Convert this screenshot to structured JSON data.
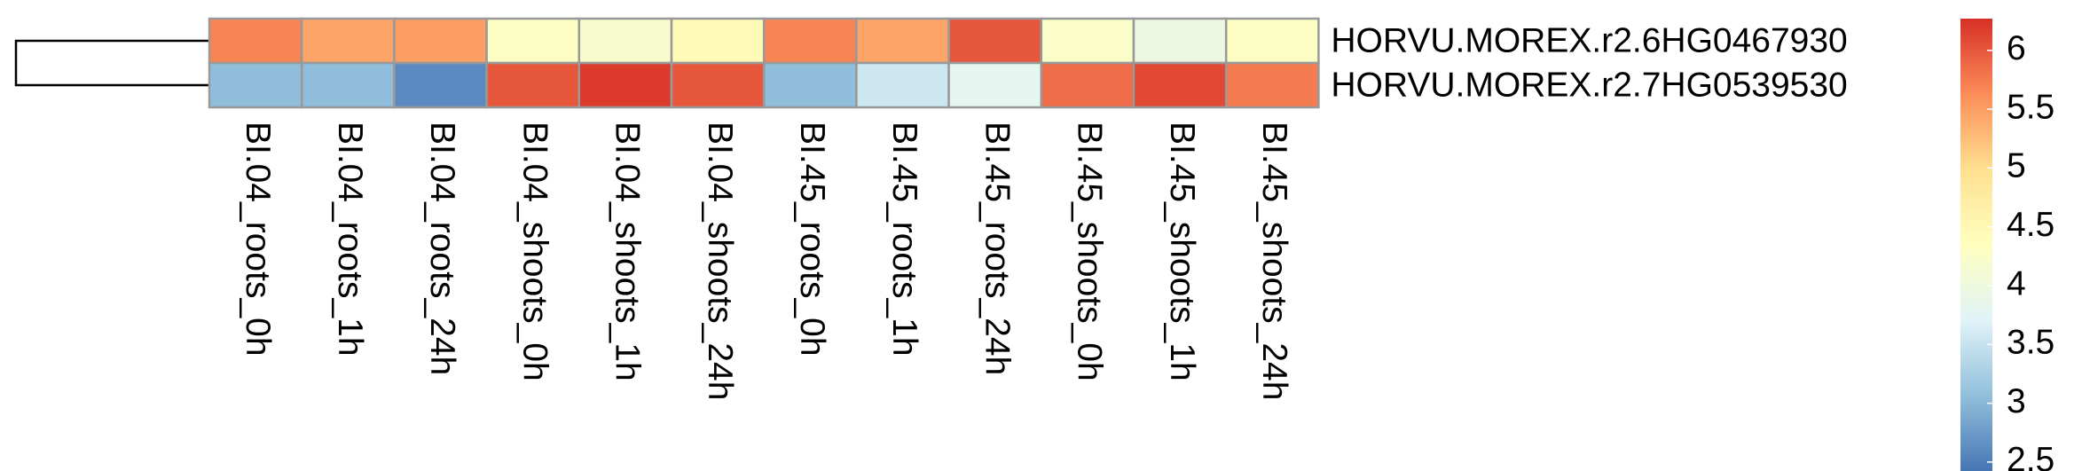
{
  "chart_data": {
    "type": "heatmap",
    "rows": [
      "HORVU.MOREX.r2.6HG0467930",
      "HORVU.MOREX.r2.7HG0539530"
    ],
    "columns": [
      "BI.04_roots_0h",
      "BI.04_roots_1h",
      "BI.04_roots_24h",
      "BI.04_shoots_0h",
      "BI.04_shoots_1h",
      "BI.04_shoots_24h",
      "BI.45_roots_0h",
      "BI.45_roots_1h",
      "BI.45_roots_24h",
      "BI.45_shoots_0h",
      "BI.45_shoots_1h",
      "BI.45_shoots_24h"
    ],
    "values": [
      [
        5.7,
        5.45,
        5.5,
        4.3,
        4.2,
        4.45,
        5.7,
        5.45,
        6.0,
        4.25,
        3.95,
        4.3
      ],
      [
        3.05,
        3.05,
        2.6,
        6.0,
        6.2,
        6.0,
        3.05,
        3.55,
        3.8,
        5.85,
        6.1,
        5.75
      ]
    ],
    "colorscale": [
      "#4575b4",
      "#91bfdb",
      "#e0f3f8",
      "#ffffbf",
      "#fee090",
      "#fc8d59",
      "#d73027"
    ],
    "clim": [
      2.42,
      6.27
    ],
    "cticks": [
      6,
      5.5,
      5,
      4.5,
      4,
      3.5,
      3,
      2.5
    ]
  }
}
